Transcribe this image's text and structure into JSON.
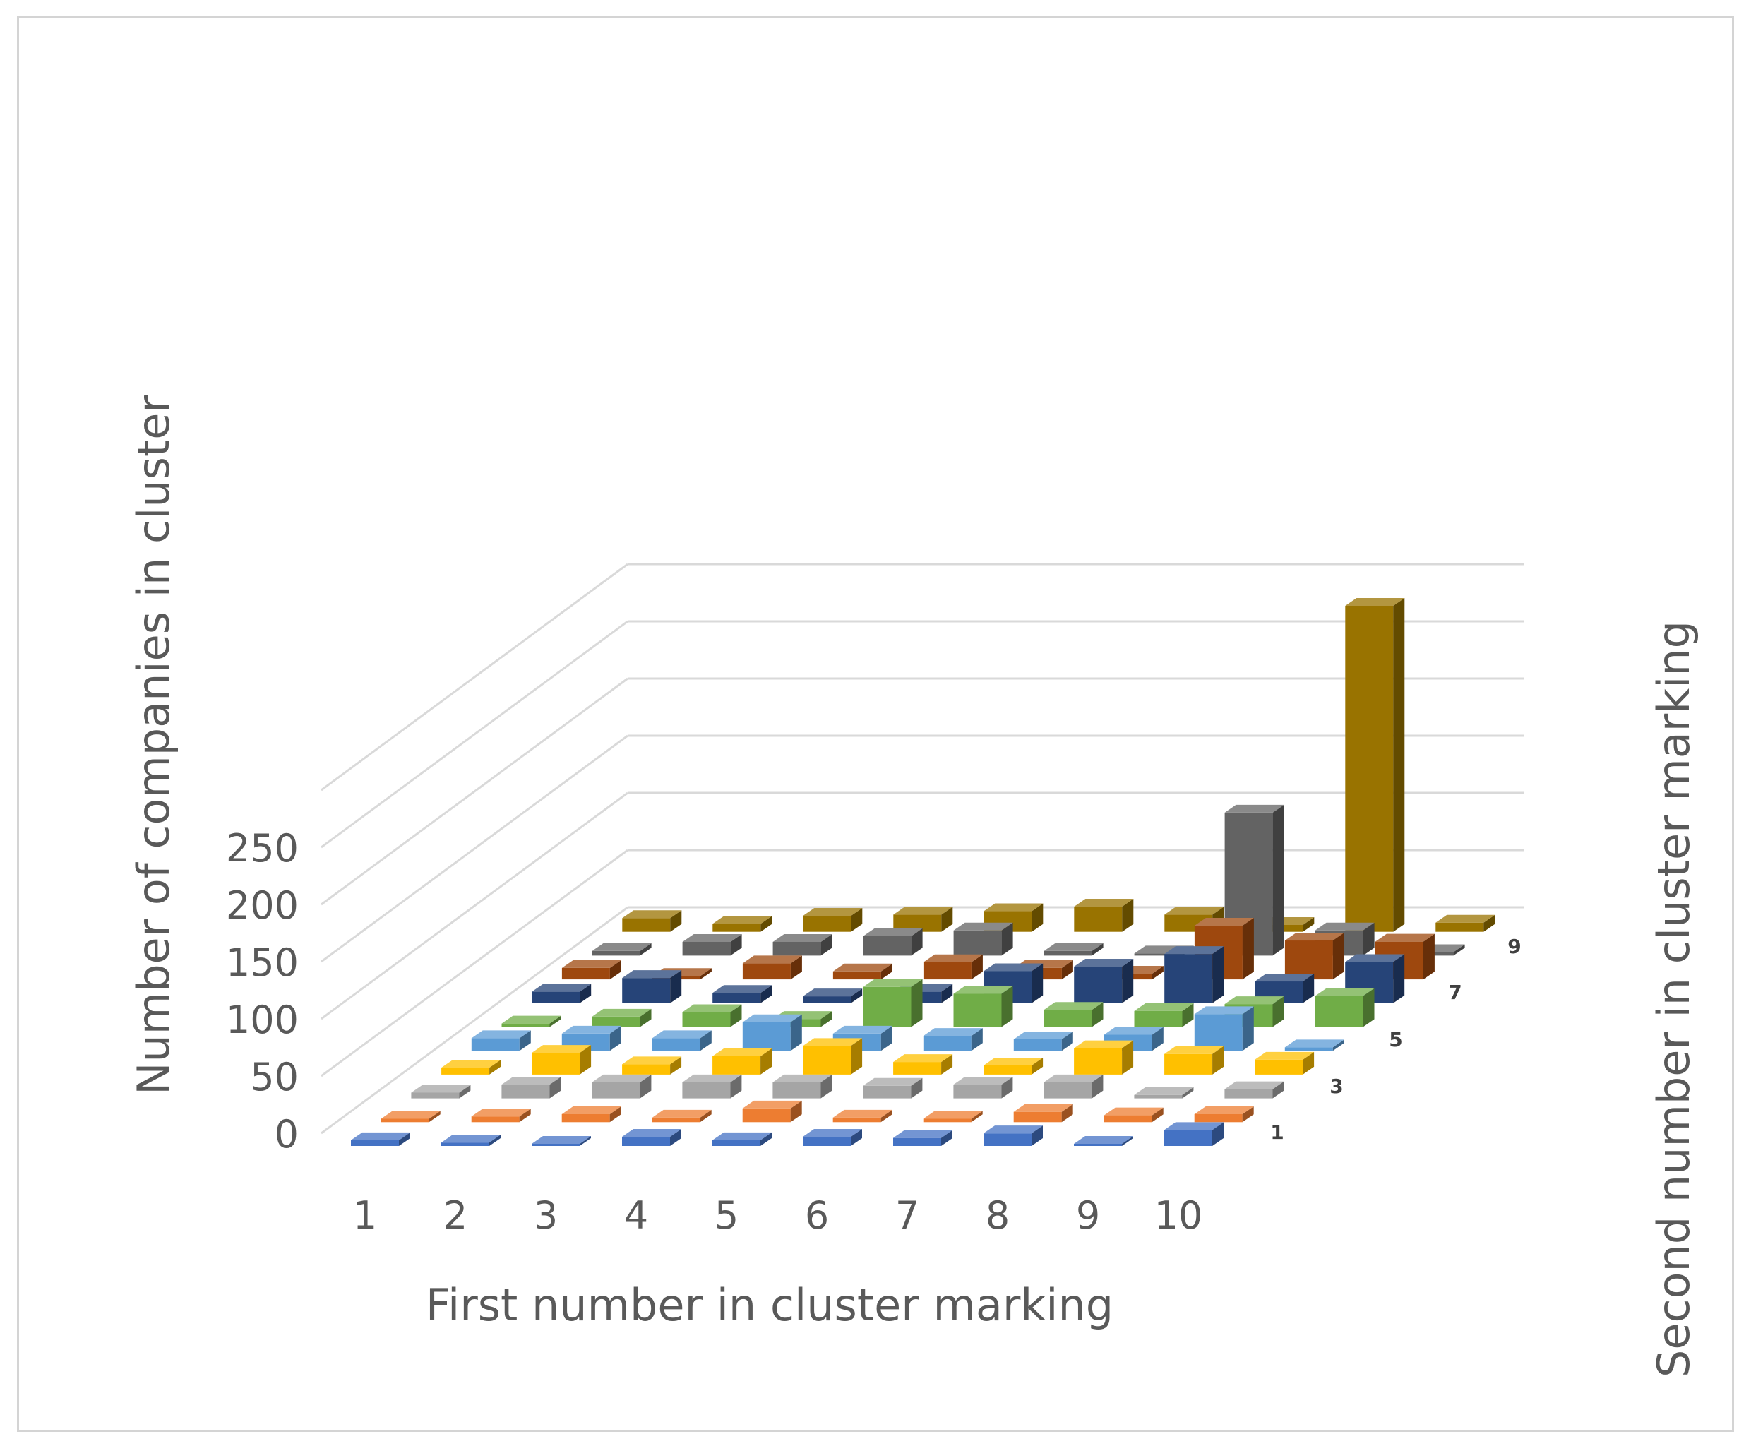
{
  "chart_data": {
    "type": "bar",
    "subtype": "3d-column",
    "title": "",
    "xlabel": "First number in cluster marking",
    "ylabel": "Number of companies in cluster",
    "zlabel": "Second number in cluster marking",
    "x": [
      1,
      2,
      3,
      4,
      5,
      6,
      7,
      8,
      9,
      10
    ],
    "x_tick_labels": [
      "1",
      "2",
      "3",
      "4",
      "5",
      "6",
      "7",
      "8",
      "9",
      "10"
    ],
    "z_tick_labels": [
      "1",
      "3",
      "5",
      "7",
      "9"
    ],
    "y_ticks": [
      0,
      50,
      100,
      150,
      200,
      250
    ],
    "ylim": [
      0,
      300
    ],
    "grid": true,
    "series": [
      {
        "z": 1,
        "color": "#4472C4",
        "values": [
          5,
          3,
          1,
          8,
          5,
          8,
          7,
          11,
          1,
          14
        ]
      },
      {
        "z": 2,
        "color": "#ED7D31",
        "values": [
          3,
          5,
          7,
          4,
          12,
          4,
          3,
          9,
          6,
          7
        ]
      },
      {
        "z": 3,
        "color": "#A5A5A5",
        "values": [
          5,
          12,
          14,
          14,
          14,
          11,
          12,
          14,
          3,
          8
        ]
      },
      {
        "z": 4,
        "color": "#FFC000",
        "values": [
          6,
          19,
          9,
          16,
          25,
          11,
          8,
          23,
          18,
          13
        ]
      },
      {
        "z": 5,
        "color": "#5B9BD5",
        "values": [
          11,
          15,
          11,
          25,
          15,
          13,
          10,
          14,
          32,
          3
        ]
      },
      {
        "z": 6,
        "color": "#70AD47",
        "values": [
          3,
          9,
          13,
          7,
          35,
          29,
          15,
          14,
          20,
          27
        ]
      },
      {
        "z": 7,
        "color": "#264478",
        "values": [
          10,
          22,
          9,
          6,
          10,
          28,
          32,
          43,
          19,
          36
        ]
      },
      {
        "z": 8,
        "color": "#9E480E",
        "values": [
          10,
          3,
          14,
          7,
          15,
          10,
          5,
          47,
          34,
          33
        ]
      },
      {
        "z": 9,
        "color": "#636363",
        "values": [
          4,
          12,
          12,
          17,
          22,
          4,
          1,
          125,
          22,
          3
        ]
      },
      {
        "z": 10,
        "color": "#997300",
        "values": [
          12,
          7,
          14,
          15,
          18,
          22,
          15,
          6,
          285,
          8
        ]
      }
    ]
  }
}
